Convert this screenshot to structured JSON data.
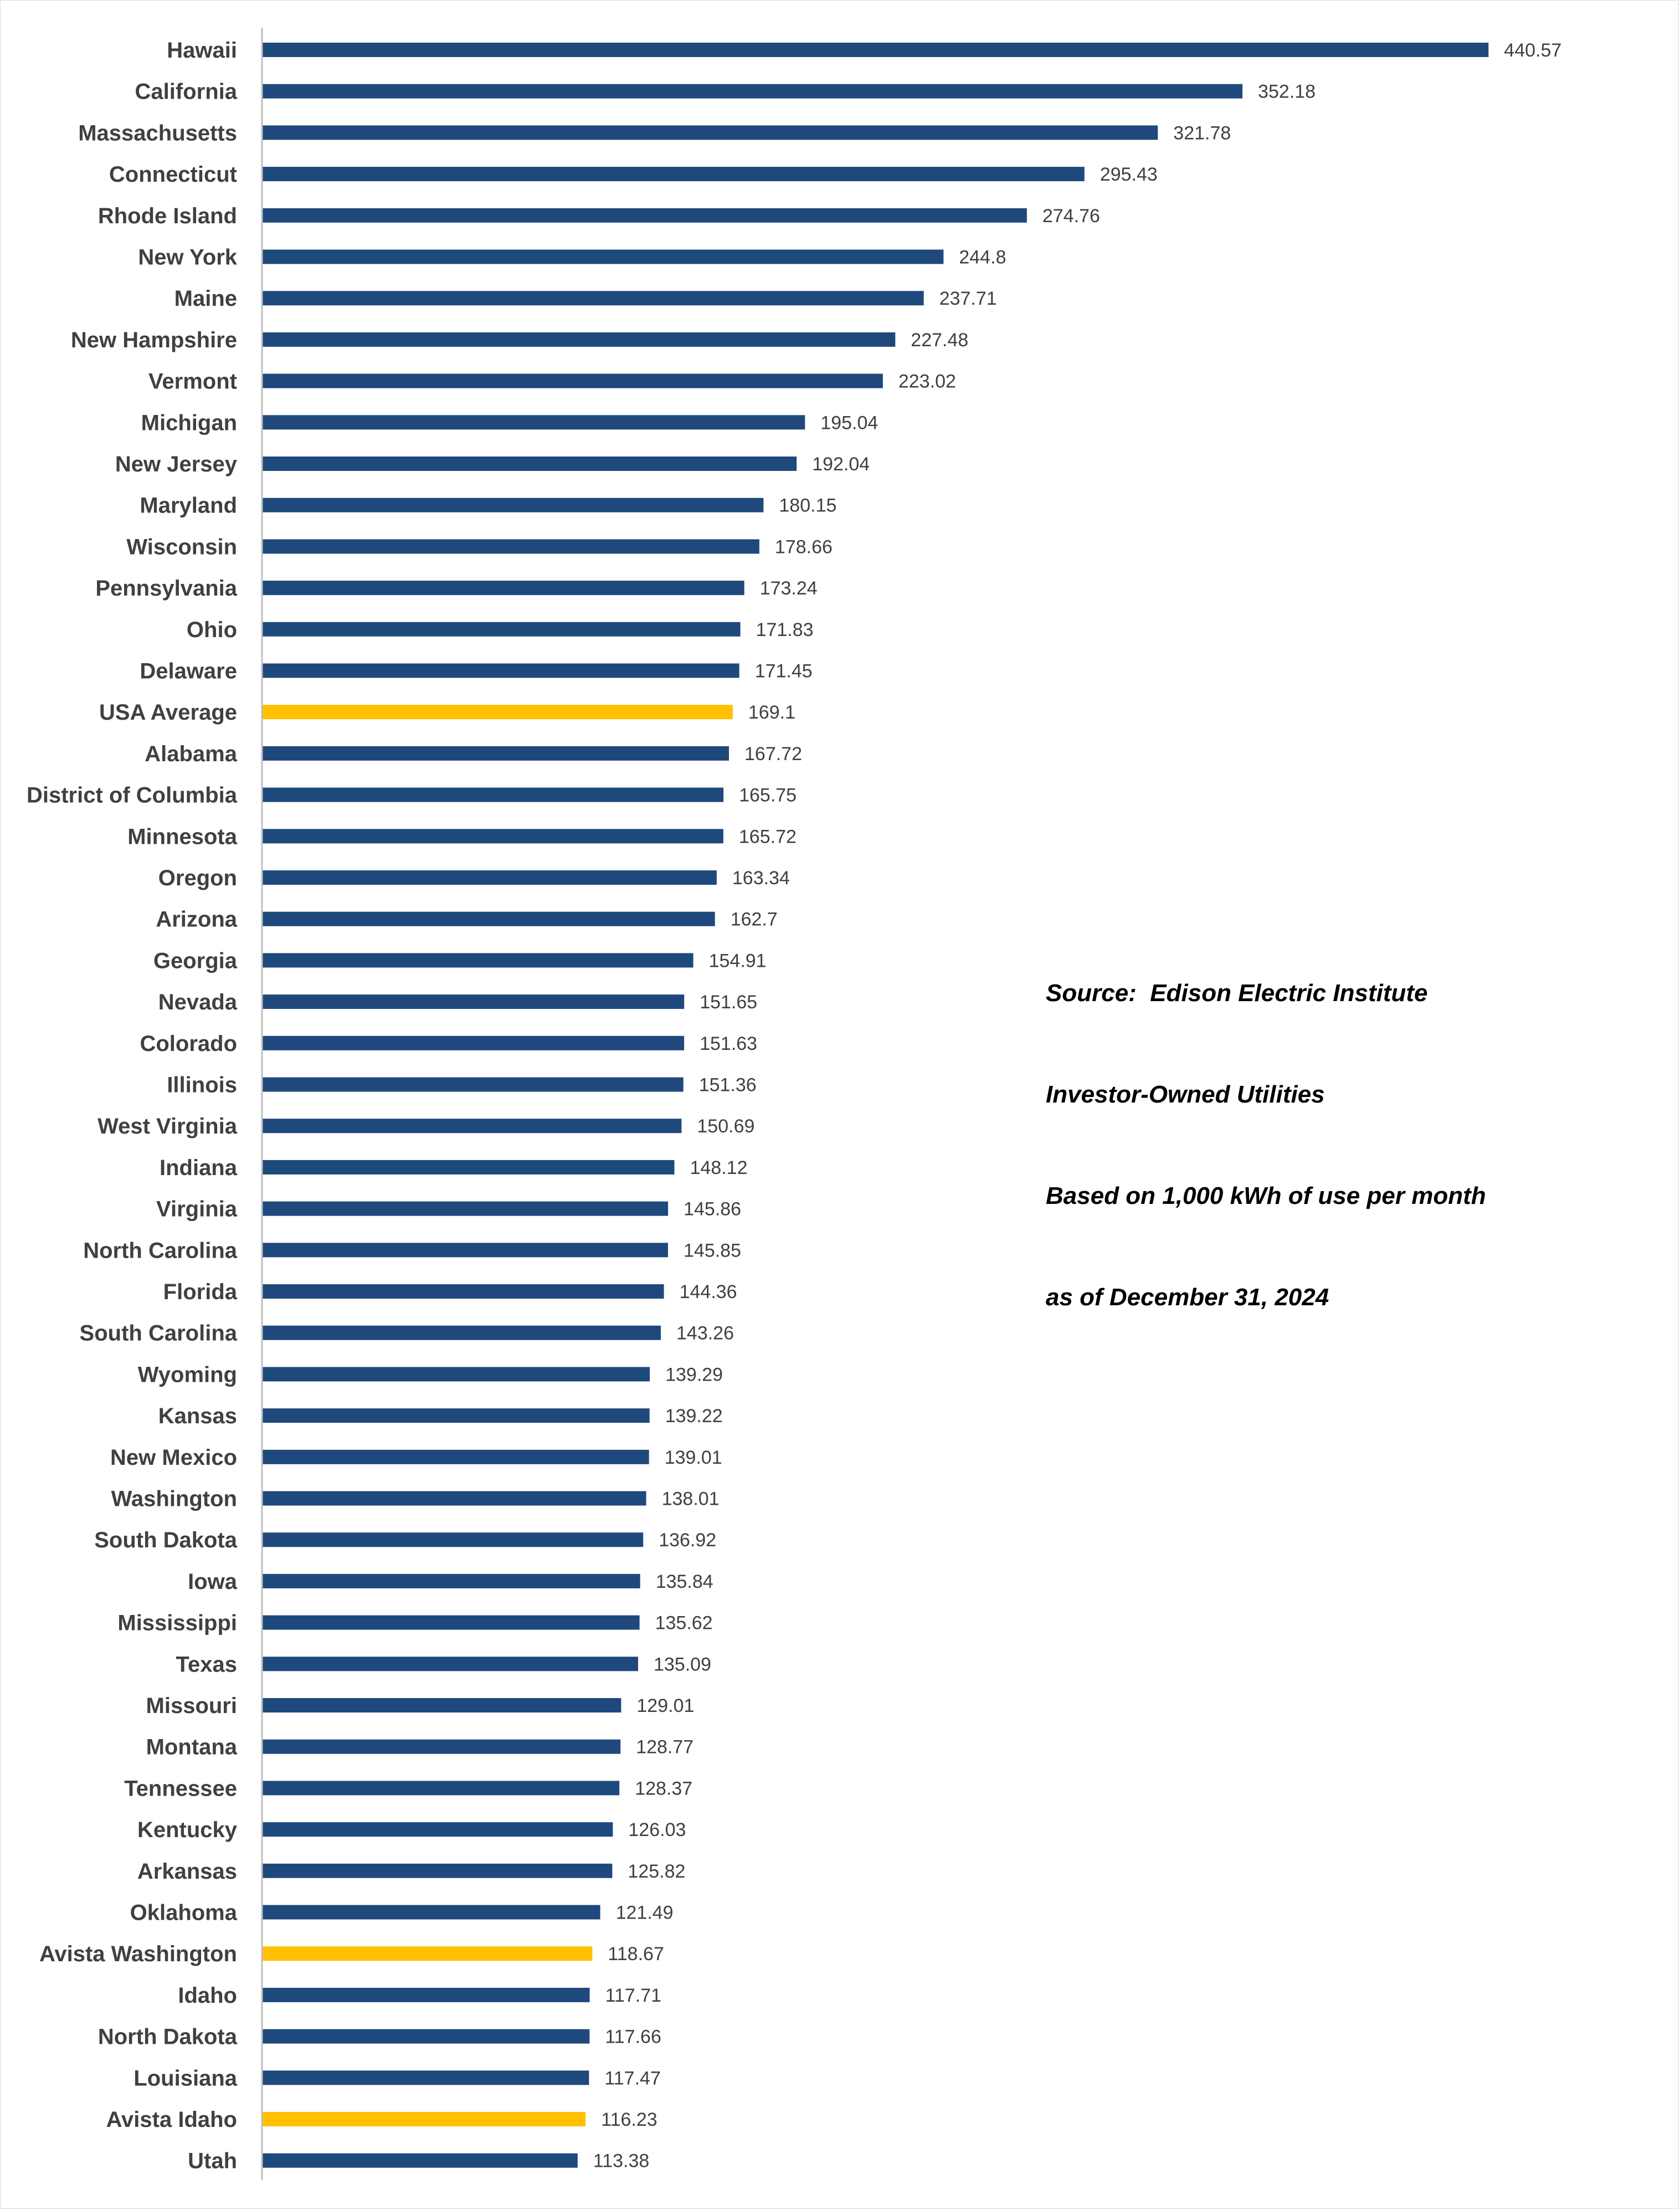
{
  "colors": {
    "default_bar": "#1f497d",
    "highlight_bar": "#ffc000",
    "axis": "#bfbfbf"
  },
  "note": {
    "line1": "Source:  Edison Electric Institute",
    "line2": "Investor-Owned Utilities",
    "line3": "Based on 1,000 kWh of use per month",
    "line4": "as of December 31, 2024"
  },
  "chart_data": {
    "type": "bar",
    "orientation": "horizontal",
    "title": "",
    "xlabel": "",
    "ylabel": "",
    "grid": false,
    "data_labels": true,
    "xlim": [
      0,
      500
    ],
    "categories": [
      "Hawaii",
      "California",
      "Massachusetts",
      "Connecticut",
      "Rhode Island",
      "New York",
      "Maine",
      "New Hampshire",
      "Vermont",
      "Michigan",
      "New Jersey",
      "Maryland",
      "Wisconsin",
      "Pennsylvania",
      "Ohio",
      "Delaware",
      "USA Average",
      "Alabama",
      "District of Columbia",
      "Minnesota",
      "Oregon",
      "Arizona",
      "Georgia",
      "Nevada",
      "Colorado",
      "Illinois",
      "West Virginia",
      "Indiana",
      "Virginia",
      "North Carolina",
      "Florida",
      "South Carolina",
      "Wyoming",
      "Kansas",
      "New Mexico",
      "Washington",
      "South Dakota",
      "Iowa",
      "Mississippi",
      "Texas",
      "Missouri",
      "Montana",
      "Tennessee",
      "Kentucky",
      "Arkansas",
      "Oklahoma",
      "Avista Washington",
      "Idaho",
      "North Dakota",
      "Louisiana",
      "Avista Idaho",
      "Utah"
    ],
    "values": [
      440.57,
      352.18,
      321.78,
      295.43,
      274.76,
      244.8,
      237.71,
      227.48,
      223.02,
      195.04,
      192.04,
      180.15,
      178.66,
      173.24,
      171.83,
      171.45,
      169.1,
      167.72,
      165.75,
      165.72,
      163.34,
      162.7,
      154.91,
      151.65,
      151.63,
      151.36,
      150.69,
      148.12,
      145.86,
      145.85,
      144.36,
      143.26,
      139.29,
      139.22,
      139.01,
      138.01,
      136.92,
      135.84,
      135.62,
      135.09,
      129.01,
      128.77,
      128.37,
      126.03,
      125.82,
      121.49,
      118.67,
      117.71,
      117.66,
      117.47,
      116.23,
      113.38
    ],
    "highlighted": [
      "USA Average",
      "Avista Washington",
      "Avista Idaho"
    ]
  }
}
